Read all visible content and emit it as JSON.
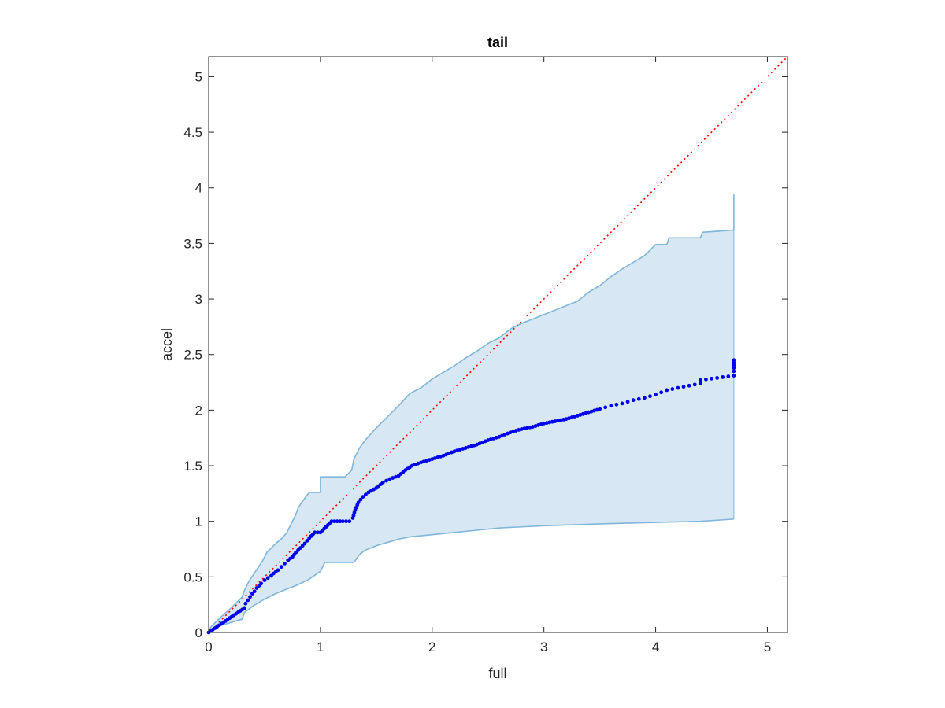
{
  "chart_data": {
    "type": "scatter",
    "title": "tail",
    "xlabel": "full",
    "ylabel": "accel",
    "xlim": [
      0,
      5.18
    ],
    "ylim": [
      0,
      5.18
    ],
    "xticks": [
      "0",
      "1",
      "2",
      "3",
      "4",
      "5"
    ],
    "yticks": [
      "0",
      "0.5",
      "1",
      "1.5",
      "2",
      "2.5",
      "3",
      "3.5",
      "4",
      "4.5",
      "5"
    ],
    "grid": false,
    "legend": "none",
    "colors": {
      "points": "#0000ee",
      "band_fill": "#d7e7f4",
      "band_edge": "#7fb6d9",
      "reference": "#ff0000",
      "axes": "#262626"
    },
    "reference_line": {
      "style": "dotted",
      "x": [
        0,
        5.18
      ],
      "y": [
        0,
        5.18
      ]
    },
    "band": {
      "upper": [
        [
          0,
          0.0
        ],
        [
          0.02,
          0.05
        ],
        [
          0.1,
          0.13
        ],
        [
          0.2,
          0.22
        ],
        [
          0.3,
          0.32
        ],
        [
          0.32,
          0.38
        ],
        [
          0.36,
          0.46
        ],
        [
          0.42,
          0.55
        ],
        [
          0.48,
          0.64
        ],
        [
          0.52,
          0.72
        ],
        [
          0.6,
          0.8
        ],
        [
          0.66,
          0.85
        ],
        [
          0.7,
          0.9
        ],
        [
          0.74,
          0.98
        ],
        [
          0.78,
          1.06
        ],
        [
          0.8,
          1.12
        ],
        [
          0.84,
          1.18
        ],
        [
          0.9,
          1.26
        ],
        [
          1.0,
          1.26
        ],
        [
          1.0,
          1.4
        ],
        [
          1.22,
          1.4
        ],
        [
          1.28,
          1.46
        ],
        [
          1.3,
          1.56
        ],
        [
          1.35,
          1.66
        ],
        [
          1.4,
          1.73
        ],
        [
          1.5,
          1.84
        ],
        [
          1.6,
          1.94
        ],
        [
          1.7,
          2.04
        ],
        [
          1.8,
          2.15
        ],
        [
          1.9,
          2.2
        ],
        [
          2.0,
          2.28
        ],
        [
          2.1,
          2.34
        ],
        [
          2.2,
          2.4
        ],
        [
          2.3,
          2.47
        ],
        [
          2.4,
          2.53
        ],
        [
          2.5,
          2.6
        ],
        [
          2.6,
          2.65
        ],
        [
          2.7,
          2.73
        ],
        [
          2.8,
          2.78
        ],
        [
          2.9,
          2.82
        ],
        [
          3.0,
          2.86
        ],
        [
          3.1,
          2.9
        ],
        [
          3.2,
          2.94
        ],
        [
          3.3,
          2.98
        ],
        [
          3.4,
          3.06
        ],
        [
          3.5,
          3.12
        ],
        [
          3.6,
          3.2
        ],
        [
          3.7,
          3.27
        ],
        [
          3.8,
          3.33
        ],
        [
          3.9,
          3.39
        ],
        [
          4.0,
          3.49
        ],
        [
          4.1,
          3.49
        ],
        [
          4.12,
          3.55
        ],
        [
          4.4,
          3.55
        ],
        [
          4.42,
          3.6
        ],
        [
          4.7,
          3.62
        ],
        [
          4.7,
          3.94
        ]
      ],
      "lower": [
        [
          0,
          0.0
        ],
        [
          0.05,
          0.03
        ],
        [
          0.1,
          0.06
        ],
        [
          0.2,
          0.09
        ],
        [
          0.3,
          0.12
        ],
        [
          0.32,
          0.18
        ],
        [
          0.4,
          0.24
        ],
        [
          0.5,
          0.3
        ],
        [
          0.6,
          0.35
        ],
        [
          0.7,
          0.39
        ],
        [
          0.8,
          0.43
        ],
        [
          0.9,
          0.48
        ],
        [
          1.0,
          0.55
        ],
        [
          1.04,
          0.63
        ],
        [
          1.3,
          0.63
        ],
        [
          1.35,
          0.7
        ],
        [
          1.4,
          0.74
        ],
        [
          1.5,
          0.78
        ],
        [
          1.6,
          0.81
        ],
        [
          1.7,
          0.84
        ],
        [
          1.8,
          0.86
        ],
        [
          2.0,
          0.88
        ],
        [
          2.2,
          0.9
        ],
        [
          2.4,
          0.92
        ],
        [
          2.6,
          0.94
        ],
        [
          2.8,
          0.95
        ],
        [
          3.0,
          0.96
        ],
        [
          3.3,
          0.97
        ],
        [
          3.6,
          0.98
        ],
        [
          4.0,
          0.99
        ],
        [
          4.4,
          1.0
        ],
        [
          4.7,
          1.02
        ]
      ]
    },
    "series": [
      {
        "points": [
          [
            0.0,
            0.0
          ],
          [
            0.32,
            0.22
          ],
          [
            0.33,
            0.26
          ],
          [
            0.35,
            0.29
          ],
          [
            0.37,
            0.32
          ],
          [
            0.39,
            0.35
          ],
          [
            0.41,
            0.37
          ],
          [
            0.43,
            0.4
          ],
          [
            0.45,
            0.42
          ],
          [
            0.47,
            0.44
          ],
          [
            0.5,
            0.47
          ],
          [
            0.53,
            0.49
          ],
          [
            0.56,
            0.51
          ],
          [
            0.58,
            0.53
          ],
          [
            0.62,
            0.56
          ],
          [
            0.65,
            0.59
          ],
          [
            0.68,
            0.62
          ],
          [
            0.71,
            0.65
          ],
          [
            0.75,
            0.68
          ],
          [
            0.78,
            0.72
          ],
          [
            0.82,
            0.76
          ],
          [
            0.86,
            0.8
          ],
          [
            0.9,
            0.85
          ],
          [
            0.95,
            0.9
          ],
          [
            1.0,
            0.9
          ],
          [
            1.05,
            0.95
          ],
          [
            1.1,
            1.0
          ],
          [
            1.15,
            1.0
          ],
          [
            1.2,
            1.0
          ],
          [
            1.26,
            1.0
          ],
          [
            1.29,
            1.03
          ],
          [
            1.31,
            1.1
          ],
          [
            1.34,
            1.17
          ],
          [
            1.38,
            1.22
          ],
          [
            1.43,
            1.26
          ],
          [
            1.5,
            1.3
          ],
          [
            1.56,
            1.35
          ],
          [
            1.62,
            1.38
          ],
          [
            1.7,
            1.41
          ],
          [
            1.76,
            1.46
          ],
          [
            1.82,
            1.5
          ],
          [
            1.9,
            1.53
          ],
          [
            2.0,
            1.56
          ],
          [
            2.1,
            1.59
          ],
          [
            2.2,
            1.63
          ],
          [
            2.3,
            1.66
          ],
          [
            2.4,
            1.69
          ],
          [
            2.5,
            1.73
          ],
          [
            2.6,
            1.76
          ],
          [
            2.7,
            1.8
          ],
          [
            2.8,
            1.83
          ],
          [
            2.9,
            1.85
          ],
          [
            3.0,
            1.88
          ],
          [
            3.1,
            1.9
          ],
          [
            3.2,
            1.92
          ],
          [
            3.3,
            1.95
          ],
          [
            3.4,
            1.98
          ],
          [
            3.5,
            2.01
          ],
          [
            3.6,
            2.04
          ],
          [
            3.7,
            2.06
          ],
          [
            3.8,
            2.09
          ],
          [
            3.9,
            2.11
          ],
          [
            4.0,
            2.14
          ],
          [
            4.1,
            2.18
          ],
          [
            4.2,
            2.2
          ],
          [
            4.4,
            2.24
          ],
          [
            4.4,
            2.27
          ],
          [
            4.7,
            2.31
          ],
          [
            4.7,
            2.35
          ],
          [
            4.7,
            2.38
          ],
          [
            4.7,
            2.45
          ]
        ]
      }
    ]
  }
}
